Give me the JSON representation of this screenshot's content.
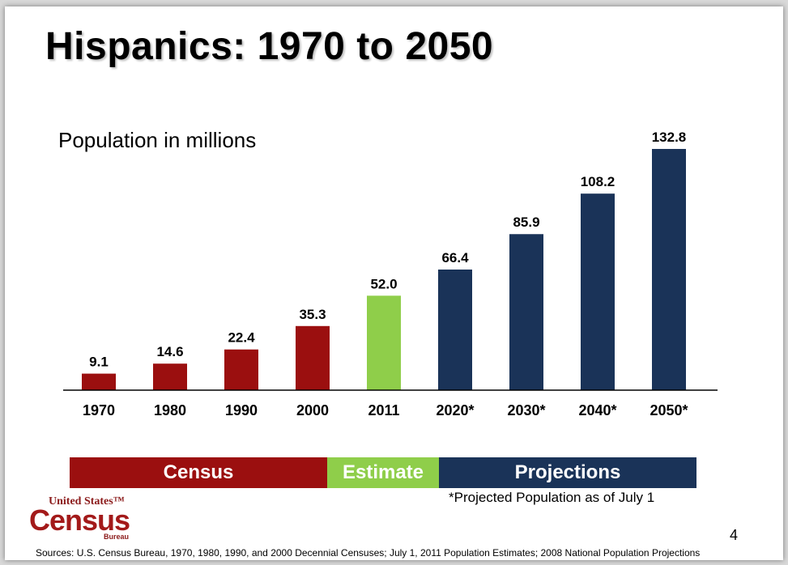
{
  "title": "Hispanics: 1970 to 2050",
  "subtitle": "Population in millions",
  "chart_data": {
    "type": "bar",
    "title": "Hispanics: 1970 to 2050",
    "ylabel": "Population in millions",
    "xlabel": "",
    "categories": [
      "1970",
      "1980",
      "1990",
      "2000",
      "2011",
      "2020*",
      "2030*",
      "2040*",
      "2050*"
    ],
    "values": [
      9.1,
      14.6,
      22.4,
      35.3,
      52.0,
      66.4,
      85.9,
      108.2,
      132.8
    ],
    "value_labels": [
      "9.1",
      "14.6",
      "22.4",
      "35.3",
      "52.0",
      "66.4",
      "85.9",
      "108.2",
      "132.8"
    ],
    "bar_colors": [
      "#9b0f0f",
      "#9b0f0f",
      "#9b0f0f",
      "#9b0f0f",
      "#8fce4a",
      "#1a3358",
      "#1a3358",
      "#1a3358",
      "#1a3358"
    ],
    "ylim": [
      0,
      132.8
    ],
    "grid": false,
    "groups": [
      {
        "label": "Census",
        "color": "#9b0f0f"
      },
      {
        "label": "Estimate",
        "color": "#8fce4a"
      },
      {
        "label": "Projections",
        "color": "#1a3358"
      }
    ]
  },
  "legend_bands": {
    "census": "Census",
    "estimate": "Estimate",
    "projections": "Projections"
  },
  "footnote": "*Projected Population as of July 1",
  "logo": {
    "line1": "United States™",
    "line2": "Census",
    "line3": "Bureau"
  },
  "page_number": "4",
  "sources": "Sources: U.S. Census Bureau, 1970, 1980, 1990, and 2000 Decennial Censuses; July 1, 2011 Population Estimates; 2008 National Population Projections",
  "colors": {
    "census": "#9b0f0f",
    "estimate": "#8fce4a",
    "projections": "#1a3358"
  }
}
